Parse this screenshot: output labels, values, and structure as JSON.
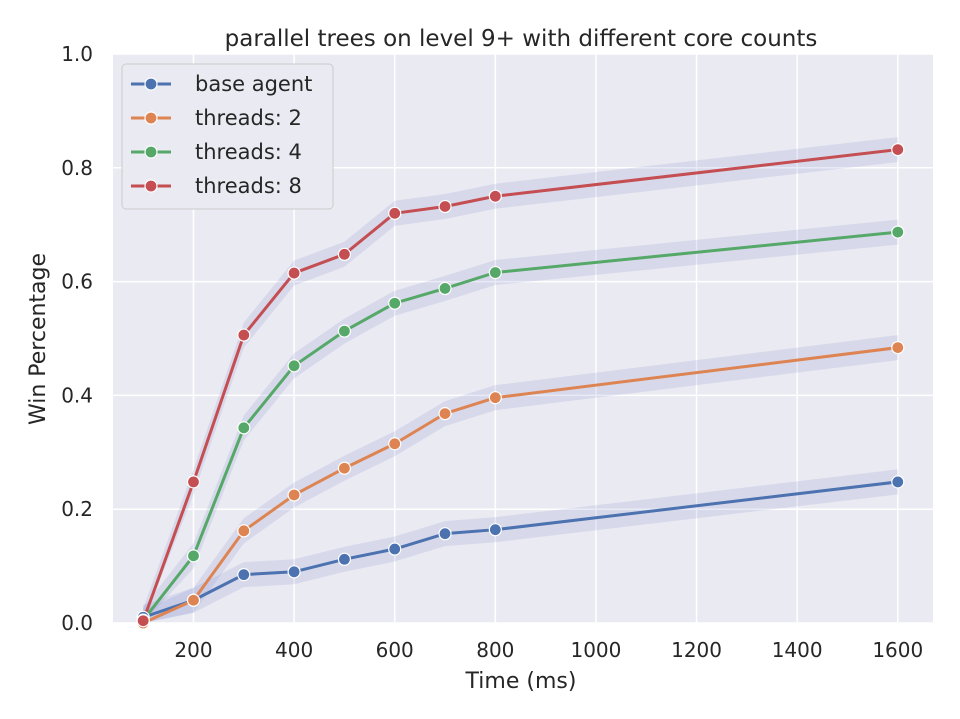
{
  "chart_data": {
    "type": "line",
    "title": "parallel trees on level 9+ with different core counts",
    "xlabel": "Time (ms)",
    "ylabel": "Win Percentage",
    "x": [
      100,
      200,
      300,
      400,
      500,
      600,
      700,
      800,
      1600
    ],
    "xlim": [
      40,
      1670
    ],
    "ylim": [
      0,
      1.0
    ],
    "xticks": [
      200,
      400,
      600,
      800,
      1000,
      1200,
      1400,
      1600
    ],
    "yticks": [
      0.0,
      0.2,
      0.4,
      0.6,
      0.8,
      1.0
    ],
    "xtick_labels": [
      "200",
      "400",
      "600",
      "800",
      "1000",
      "1200",
      "1400",
      "1600"
    ],
    "ytick_labels": [
      "0.0",
      "0.2",
      "0.4",
      "0.6",
      "0.8",
      "1.0"
    ],
    "grid": true,
    "legend_position": "top-left",
    "confidence_band": 0.022,
    "series": [
      {
        "name": "base agent",
        "color": "#4c72b0",
        "values": [
          0.01,
          0.04,
          0.085,
          0.09,
          0.112,
          0.13,
          0.157,
          0.164,
          0.248
        ]
      },
      {
        "name": "threads: 2",
        "color": "#dd8452",
        "values": [
          0.0,
          0.04,
          0.162,
          0.225,
          0.272,
          0.315,
          0.368,
          0.396,
          0.484
        ]
      },
      {
        "name": "threads: 4",
        "color": "#55a868",
        "values": [
          0.005,
          0.118,
          0.343,
          0.452,
          0.513,
          0.562,
          0.588,
          0.616,
          0.687
        ]
      },
      {
        "name": "threads: 8",
        "color": "#c44e52",
        "values": [
          0.004,
          0.248,
          0.506,
          0.615,
          0.648,
          0.72,
          0.732,
          0.75,
          0.832
        ]
      }
    ]
  },
  "colors": {
    "plot_background": "#eaeaf2",
    "grid": "#ffffff",
    "band": "#8c96d2"
  }
}
